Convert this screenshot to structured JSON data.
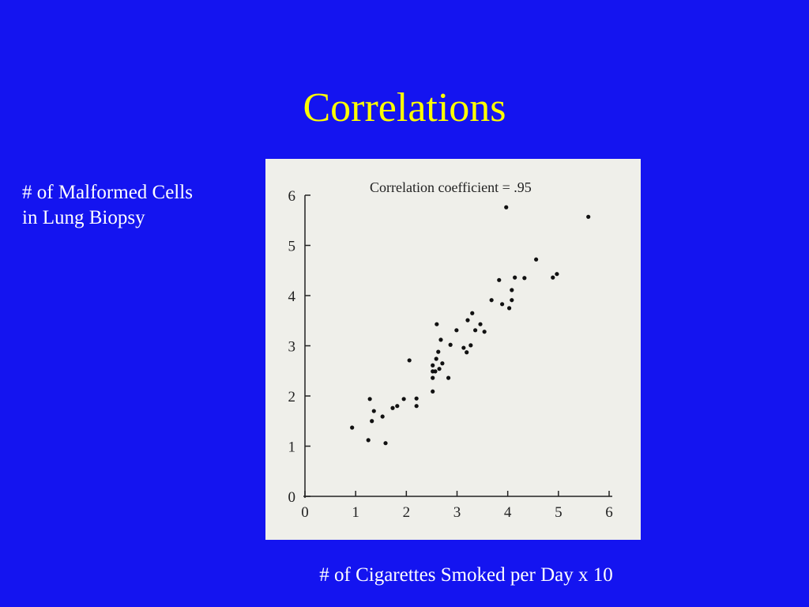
{
  "chart_data": {
    "type": "scatter",
    "title": "Correlations",
    "annotation": "Correlation coefficient  =  .95",
    "ylabel": "# of Malformed Cells in Lung Biopsy",
    "xlabel": "# of Cigarettes Smoked per Day x 10",
    "color": "#111111",
    "x": [
      0.93,
      1.25,
      1.28,
      1.36,
      1.32,
      1.53,
      1.59,
      1.73,
      1.82,
      1.95,
      2.2,
      2.2,
      2.06,
      2.52,
      2.52,
      2.57,
      2.52,
      2.59,
      2.63,
      2.68,
      2.6,
      2.52,
      2.65,
      2.71,
      2.83,
      2.87,
      2.99,
      3.13,
      3.19,
      3.27,
      3.21,
      3.3,
      3.36,
      3.46,
      3.54,
      3.68,
      3.83,
      3.89,
      3.97,
      4.03,
      4.08,
      4.08,
      4.14,
      4.33,
      4.56,
      4.89,
      4.97,
      5.59
    ],
    "values": [
      1.37,
      1.12,
      1.94,
      1.7,
      1.5,
      1.59,
      1.06,
      1.76,
      1.8,
      1.94,
      1.8,
      1.95,
      2.71,
      2.09,
      2.36,
      2.49,
      2.61,
      2.74,
      2.88,
      3.12,
      3.43,
      2.49,
      2.54,
      2.65,
      2.36,
      3.02,
      3.31,
      2.96,
      2.87,
      3.01,
      3.51,
      3.65,
      3.31,
      3.43,
      3.28,
      3.91,
      4.31,
      3.83,
      5.76,
      3.75,
      4.11,
      3.91,
      4.36,
      4.35,
      4.72,
      4.36,
      4.43,
      5.57
    ],
    "xlim": [
      0,
      6
    ],
    "ylim": [
      0,
      6
    ],
    "xticks": [
      0,
      1,
      2,
      3,
      4,
      5,
      6
    ],
    "yticks": [
      0,
      1,
      2,
      3,
      4,
      5,
      6
    ]
  }
}
